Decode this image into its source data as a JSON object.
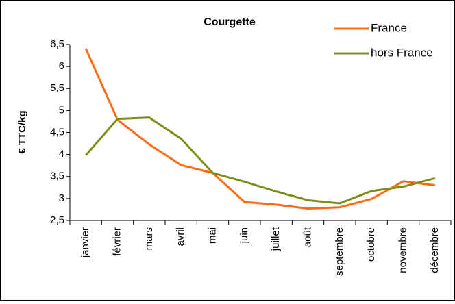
{
  "chart_data": {
    "type": "line",
    "title": "Courgette",
    "ylabel": "€ TTC/kg",
    "categories": [
      "janvier",
      "février",
      "mars",
      "avril",
      "mai",
      "juin",
      "juillet",
      "août",
      "septembre",
      "octobre",
      "novembre",
      "décembre"
    ],
    "series": [
      {
        "name": "France",
        "color": "#ff6a13",
        "values": [
          6.41,
          4.79,
          4.23,
          3.76,
          3.58,
          2.92,
          2.86,
          2.77,
          2.8,
          2.99,
          3.39,
          3.3
        ]
      },
      {
        "name": "hors France",
        "color": "#7f8c17",
        "values": [
          3.98,
          4.81,
          4.84,
          4.36,
          3.58,
          3.38,
          3.16,
          2.96,
          2.89,
          3.17,
          3.27,
          3.46
        ]
      }
    ],
    "ylim": [
      2.5,
      6.5
    ],
    "yticks": [
      {
        "value": 2.5,
        "label": "2,5"
      },
      3,
      {
        "value": 3.5,
        "label": "3,5"
      },
      4,
      {
        "value": 4.5,
        "label": "4,5"
      },
      5,
      {
        "value": 5.5,
        "label": "5,5"
      },
      6,
      {
        "value": 6.5,
        "label": "6,5"
      }
    ],
    "legend": "top-right",
    "grid": false
  }
}
